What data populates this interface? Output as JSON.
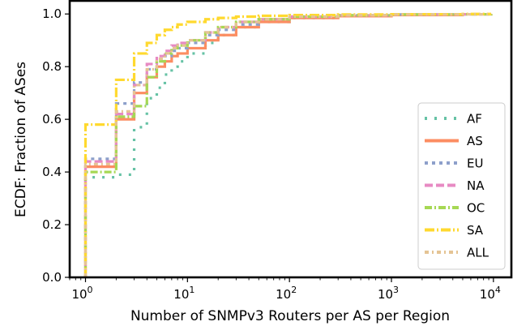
{
  "chart_data": {
    "type": "line",
    "xlabel": "Number of SNMPv3 Routers per AS per Region",
    "ylabel": "ECDF: Fraction of ASes",
    "x_scale": "log",
    "xlim": [
      0.7,
      15000
    ],
    "ylim": [
      0,
      1.05
    ],
    "x_ticks": [
      {
        "value": 1,
        "base": "10",
        "exp": "0"
      },
      {
        "value": 10,
        "base": "10",
        "exp": "1"
      },
      {
        "value": 100,
        "base": "10",
        "exp": "2"
      },
      {
        "value": 1000,
        "base": "10",
        "exp": "3"
      },
      {
        "value": 10000,
        "base": "10",
        "exp": "4"
      }
    ],
    "y_ticks": [
      {
        "value": 0.0,
        "label": "0.0"
      },
      {
        "value": 0.2,
        "label": "0.2"
      },
      {
        "value": 0.4,
        "label": "0.4"
      },
      {
        "value": 0.6,
        "label": "0.6"
      },
      {
        "value": 0.8,
        "label": "0.8"
      },
      {
        "value": 1.0,
        "label": "1.0"
      }
    ],
    "grid": false,
    "legend_position": "lower-right",
    "series": [
      {
        "name": "AF",
        "color": "#66c2a5",
        "dash": "3,9",
        "x": [
          1,
          2,
          3,
          4,
          5,
          6,
          7,
          8,
          10,
          15,
          20,
          30,
          50,
          100,
          300,
          1000,
          5000,
          9500
        ],
        "y": [
          0.38,
          0.39,
          0.57,
          0.68,
          0.72,
          0.77,
          0.8,
          0.82,
          0.85,
          0.89,
          0.92,
          0.95,
          0.97,
          0.985,
          0.993,
          0.997,
          0.999,
          1.0
        ]
      },
      {
        "name": "AS",
        "color": "#fc8d62",
        "dash": "",
        "x": [
          1,
          2,
          3,
          4,
          5,
          6,
          7,
          8,
          10,
          15,
          20,
          30,
          50,
          100,
          300,
          1000,
          5000,
          9500
        ],
        "y": [
          0.42,
          0.6,
          0.7,
          0.76,
          0.8,
          0.82,
          0.84,
          0.85,
          0.87,
          0.9,
          0.92,
          0.95,
          0.97,
          0.985,
          0.992,
          0.996,
          0.999,
          1.0
        ]
      },
      {
        "name": "EU",
        "color": "#8da0cb",
        "dash": "4,5",
        "x": [
          1,
          2,
          3,
          4,
          5,
          6,
          7,
          8,
          10,
          15,
          20,
          30,
          50,
          100,
          300,
          1000,
          5000,
          9500
        ],
        "y": [
          0.45,
          0.66,
          0.74,
          0.79,
          0.82,
          0.84,
          0.86,
          0.87,
          0.89,
          0.92,
          0.94,
          0.96,
          0.98,
          0.99,
          0.995,
          0.998,
          0.999,
          1.0
        ]
      },
      {
        "name": "NA",
        "color": "#e78ac3",
        "dash": "10,4",
        "x": [
          1,
          2,
          3,
          4,
          5,
          6,
          7,
          8,
          10,
          15,
          20,
          30,
          50,
          100,
          300,
          1000,
          5000,
          9500
        ],
        "y": [
          0.44,
          0.62,
          0.73,
          0.81,
          0.84,
          0.86,
          0.88,
          0.89,
          0.9,
          0.93,
          0.95,
          0.97,
          0.98,
          0.99,
          0.995,
          0.998,
          0.999,
          1.0
        ]
      },
      {
        "name": "OC",
        "color": "#a6d854",
        "dash": "9,3,2,3",
        "x": [
          1,
          2,
          3,
          4,
          5,
          6,
          7,
          8,
          10,
          15,
          20,
          30,
          50,
          100,
          300,
          1000,
          5000,
          9500
        ],
        "y": [
          0.4,
          0.61,
          0.65,
          0.76,
          0.82,
          0.85,
          0.87,
          0.88,
          0.9,
          0.93,
          0.95,
          0.97,
          0.98,
          0.99,
          0.995,
          0.998,
          0.999,
          1.0
        ]
      },
      {
        "name": "SA",
        "color": "#ffd92f",
        "dash": "12,3,2,3",
        "x": [
          1,
          2,
          3,
          4,
          5,
          6,
          7,
          8,
          10,
          15,
          20,
          30,
          50,
          100,
          300,
          1000,
          5000,
          9500
        ],
        "y": [
          0.58,
          0.75,
          0.85,
          0.89,
          0.92,
          0.94,
          0.95,
          0.96,
          0.97,
          0.98,
          0.985,
          0.99,
          0.993,
          0.996,
          0.998,
          0.999,
          1.0,
          1.0
        ]
      },
      {
        "name": "ALL",
        "color": "#e5c494",
        "dash": "5,4,2,4",
        "x": [
          1,
          2,
          3,
          4,
          5,
          6,
          7,
          8,
          10,
          15,
          20,
          30,
          50,
          100,
          300,
          1000,
          5000,
          9500
        ],
        "y": [
          0.43,
          0.63,
          0.73,
          0.79,
          0.83,
          0.85,
          0.87,
          0.88,
          0.9,
          0.93,
          0.95,
          0.97,
          0.98,
          0.99,
          0.995,
          0.998,
          0.999,
          1.0
        ]
      }
    ]
  }
}
